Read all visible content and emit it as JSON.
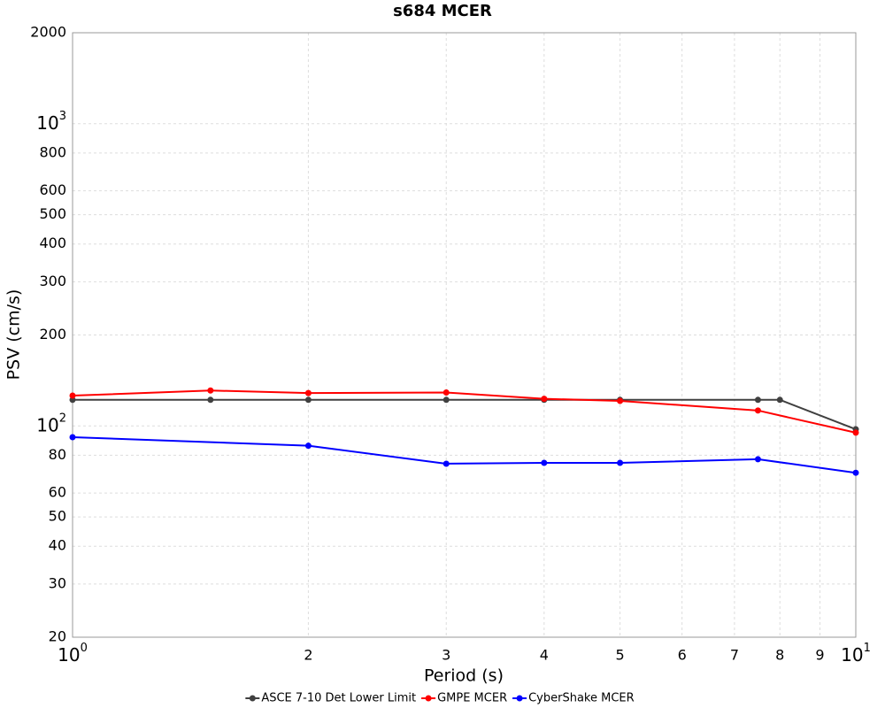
{
  "chart_data": {
    "type": "line",
    "title": "s684 MCER",
    "x_label": "Period (s)",
    "y_label": "PSV (cm/s)",
    "xscale": "log",
    "yscale": "log",
    "grid": true,
    "legend": "bottom",
    "xlim": [
      1,
      10
    ],
    "ylim": [
      20,
      2000
    ],
    "xticks": [
      {
        "value": 1,
        "label": "10",
        "exponent": "0"
      },
      2,
      3,
      4,
      5,
      6,
      7,
      8,
      9,
      {
        "value": 10,
        "label": "10",
        "exponent": "1"
      }
    ],
    "yticks": [
      20,
      30,
      40,
      50,
      60,
      80,
      {
        "value": 100,
        "label": "10",
        "exponent": "2"
      },
      200,
      300,
      400,
      500,
      600,
      800,
      {
        "value": 1000,
        "label": "10",
        "exponent": "3"
      },
      2000
    ],
    "series": [
      {
        "name": "ASCE 7-10 Det Lower Limit",
        "color": "#404040",
        "x": [
          1,
          1.5,
          2,
          3,
          4,
          5,
          7.5,
          8,
          10
        ],
        "values": [
          122,
          122,
          122,
          122,
          122,
          122,
          122,
          122,
          97.5
        ]
      },
      {
        "name": "GMPE MCER",
        "color": "#ff0000",
        "x": [
          1,
          1.5,
          2,
          3,
          4,
          5,
          7.5,
          10
        ],
        "values": [
          126,
          131,
          128.5,
          129,
          123,
          121,
          112.5,
          95
        ]
      },
      {
        "name": "CyberShake MCER",
        "color": "#0000ff",
        "x": [
          1,
          2,
          3,
          4,
          5,
          7.5,
          10
        ],
        "values": [
          91.8,
          86,
          75,
          75.5,
          75.5,
          77.6,
          70
        ]
      }
    ]
  }
}
